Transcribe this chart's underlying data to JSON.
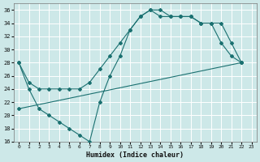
{
  "title": "",
  "xlabel": "Humidex (Indice chaleur)",
  "ylabel": "",
  "bg_color": "#cde8e8",
  "grid_color": "#b0d8d8",
  "line_color": "#1a7070",
  "ylim": [
    16,
    37
  ],
  "xlim": [
    -0.5,
    23.5
  ],
  "yticks": [
    16,
    18,
    20,
    22,
    24,
    26,
    28,
    30,
    32,
    34,
    36
  ],
  "xticks": [
    0,
    1,
    2,
    3,
    4,
    5,
    6,
    7,
    8,
    9,
    10,
    11,
    12,
    13,
    14,
    15,
    16,
    17,
    18,
    19,
    20,
    21,
    22,
    23
  ],
  "series": [
    {
      "x": [
        0,
        1,
        2,
        3,
        4,
        5,
        6,
        7,
        8,
        9,
        10,
        11,
        12,
        13,
        14,
        15,
        16,
        17,
        18,
        19,
        20,
        21,
        22
      ],
      "y": [
        28,
        24,
        21,
        20,
        19,
        18,
        17,
        16,
        22,
        26,
        29,
        33,
        35,
        36,
        36,
        35,
        35,
        35,
        34,
        34,
        31,
        29,
        28
      ]
    },
    {
      "x": [
        0,
        1,
        2,
        3,
        4,
        5,
        6,
        7,
        8,
        9,
        10,
        11,
        12,
        13,
        14,
        15,
        16,
        17,
        18,
        19,
        20,
        21,
        22
      ],
      "y": [
        28,
        25,
        24,
        24,
        24,
        24,
        24,
        25,
        27,
        29,
        31,
        33,
        35,
        36,
        35,
        35,
        35,
        35,
        34,
        34,
        34,
        31,
        28
      ]
    },
    {
      "x": [
        0,
        22
      ],
      "y": [
        21,
        28
      ]
    }
  ]
}
